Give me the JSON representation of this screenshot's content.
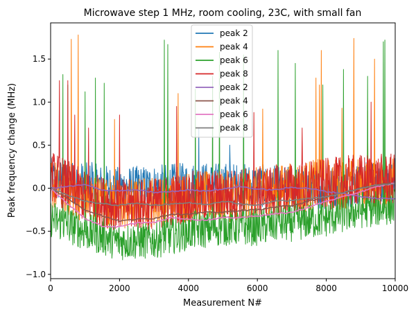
{
  "chart_data": {
    "type": "line",
    "title": "Microwave step 1 MHz, room cooling, 23C, with small fan",
    "xlabel": "Measurement N#",
    "ylabel": "Peak frequency change (MHz)",
    "xlim": [
      0,
      10000
    ],
    "ylim": [
      -1.05,
      1.92
    ],
    "x_ticks": [
      0,
      2000,
      4000,
      6000,
      8000,
      10000
    ],
    "y_ticks": [
      -1.0,
      -0.5,
      0.0,
      0.5,
      1.0,
      1.5
    ],
    "x_tick_labels": [
      "0",
      "2000",
      "4000",
      "6000",
      "8000",
      "10000"
    ],
    "y_tick_labels": [
      "−1.0",
      "−0.5",
      "0.0",
      "0.5",
      "1.0",
      "1.5"
    ],
    "grid": false,
    "legend_position": "top-center",
    "series": [
      {
        "name": "peak 2",
        "color": "#1f77b4",
        "kind": "noisy",
        "x": [
          0,
          1000,
          2000,
          3000,
          4000,
          5000,
          6000,
          7000,
          8000,
          9000,
          10000
        ],
        "center": [
          0.1,
          0.05,
          0.0,
          0.02,
          0.05,
          0.05,
          0.03,
          0.0,
          0.0,
          0.05,
          0.1
        ],
        "amplitude": 0.25,
        "spikes": [
          [
            1200,
            0.3
          ],
          [
            4300,
            0.7
          ],
          [
            5200,
            0.5
          ],
          [
            7800,
            0.45
          ]
        ]
      },
      {
        "name": "peak 4",
        "color": "#ff7f0e",
        "kind": "noisy",
        "x": [
          0,
          1000,
          2000,
          3000,
          4000,
          5000,
          6000,
          7000,
          8000,
          9000,
          10000
        ],
        "center": [
          0.05,
          -0.1,
          -0.2,
          -0.15,
          -0.1,
          -0.1,
          -0.05,
          0.0,
          0.05,
          0.05,
          0.08
        ],
        "amplitude": 0.3,
        "spikes": [
          [
            600,
            1.73
          ],
          [
            800,
            1.78
          ],
          [
            1850,
            0.8
          ],
          [
            3700,
            1.1
          ],
          [
            6150,
            0.92
          ],
          [
            7700,
            1.28
          ],
          [
            7800,
            1.2
          ],
          [
            7850,
            1.6
          ],
          [
            8450,
            0.93
          ],
          [
            8800,
            1.74
          ],
          [
            9200,
            0.9
          ],
          [
            9400,
            1.5
          ]
        ]
      },
      {
        "name": "peak 6",
        "color": "#2ca02c",
        "kind": "noisy",
        "x": [
          0,
          1000,
          2000,
          3000,
          4000,
          5000,
          6000,
          7000,
          8000,
          9000,
          10000
        ],
        "center": [
          -0.35,
          -0.5,
          -0.62,
          -0.6,
          -0.5,
          -0.45,
          -0.45,
          -0.4,
          -0.35,
          -0.25,
          -0.2
        ],
        "amplitude": 0.22,
        "spikes": [
          [
            350,
            1.32
          ],
          [
            500,
            1.2
          ],
          [
            1000,
            1.12
          ],
          [
            1300,
            1.28
          ],
          [
            1550,
            1.22
          ],
          [
            3300,
            1.72
          ],
          [
            3400,
            1.67
          ],
          [
            4200,
            1.15
          ],
          [
            4700,
            1.3
          ],
          [
            4900,
            1.58
          ],
          [
            5600,
            1.55
          ],
          [
            6600,
            1.6
          ],
          [
            7100,
            1.45
          ],
          [
            7900,
            1.2
          ],
          [
            8500,
            1.38
          ],
          [
            9200,
            1.3
          ],
          [
            9650,
            1.7
          ],
          [
            9700,
            1.72
          ]
        ]
      },
      {
        "name": "peak 8",
        "color": "#d62728",
        "kind": "noisy",
        "x": [
          0,
          1000,
          2000,
          3000,
          4000,
          5000,
          6000,
          7000,
          8000,
          9000,
          10000
        ],
        "center": [
          0.15,
          -0.1,
          -0.2,
          -0.18,
          -0.1,
          -0.08,
          -0.05,
          0.0,
          0.05,
          0.1,
          0.1
        ],
        "amplitude": 0.3,
        "spikes": [
          [
            250,
            1.25
          ],
          [
            500,
            1.25
          ],
          [
            700,
            0.85
          ],
          [
            1100,
            0.7
          ],
          [
            2000,
            0.85
          ],
          [
            3650,
            0.95
          ],
          [
            5900,
            0.88
          ],
          [
            7300,
            0.7
          ],
          [
            9300,
            1.0
          ]
        ]
      },
      {
        "name": "peak 2",
        "color": "#9467bd",
        "kind": "smooth",
        "x": [
          0,
          500,
          1000,
          1500,
          2000,
          2500,
          3000,
          3500,
          4000,
          4500,
          5000,
          5500,
          6000,
          6500,
          7000,
          7500,
          8000,
          8500,
          9000,
          9500,
          10000
        ],
        "y": [
          0.0,
          0.02,
          0.04,
          -0.02,
          -0.03,
          -0.02,
          -0.05,
          -0.04,
          -0.02,
          -0.03,
          -0.01,
          0.02,
          -0.01,
          -0.02,
          0.01,
          0.0,
          -0.04,
          -0.06,
          -0.1,
          -0.12,
          -0.12
        ]
      },
      {
        "name": "peak 4",
        "color": "#8c564b",
        "kind": "smooth",
        "x": [
          0,
          500,
          1000,
          1500,
          2000,
          2500,
          3000,
          3500,
          4000,
          4500,
          5000,
          5500,
          6000,
          6500,
          7000,
          7500,
          8000,
          8500,
          9000,
          9500,
          10000
        ],
        "y": [
          0.0,
          -0.12,
          -0.25,
          -0.32,
          -0.38,
          -0.36,
          -0.35,
          -0.3,
          -0.3,
          -0.28,
          -0.28,
          -0.26,
          -0.25,
          -0.22,
          -0.2,
          -0.15,
          -0.1,
          -0.05,
          0.0,
          0.04,
          0.06
        ]
      },
      {
        "name": "peak 6",
        "color": "#e377c2",
        "kind": "smooth",
        "x": [
          0,
          500,
          1000,
          1500,
          2000,
          2500,
          3000,
          3500,
          4000,
          4500,
          5000,
          5500,
          6000,
          6500,
          7000,
          7500,
          8000,
          8500,
          9000,
          9500,
          10000
        ],
        "y": [
          0.0,
          -0.18,
          -0.35,
          -0.44,
          -0.45,
          -0.4,
          -0.4,
          -0.34,
          -0.36,
          -0.37,
          -0.34,
          -0.34,
          -0.32,
          -0.3,
          -0.28,
          -0.22,
          -0.15,
          -0.1,
          -0.04,
          0.02,
          0.06
        ]
      },
      {
        "name": "peak 8",
        "color": "#7f7f7f",
        "kind": "smooth",
        "x": [
          0,
          500,
          1000,
          1500,
          2000,
          2500,
          3000,
          3500,
          4000,
          4500,
          5000,
          5500,
          6000,
          6500,
          7000,
          7500,
          8000,
          8500,
          9000,
          9500,
          10000
        ],
        "y": [
          0.0,
          -0.08,
          -0.15,
          -0.18,
          -0.2,
          -0.17,
          -0.2,
          -0.18,
          -0.17,
          -0.19,
          -0.15,
          -0.18,
          -0.2,
          -0.15,
          -0.14,
          -0.12,
          -0.1,
          -0.05,
          0.0,
          0.04,
          0.05
        ]
      }
    ]
  }
}
